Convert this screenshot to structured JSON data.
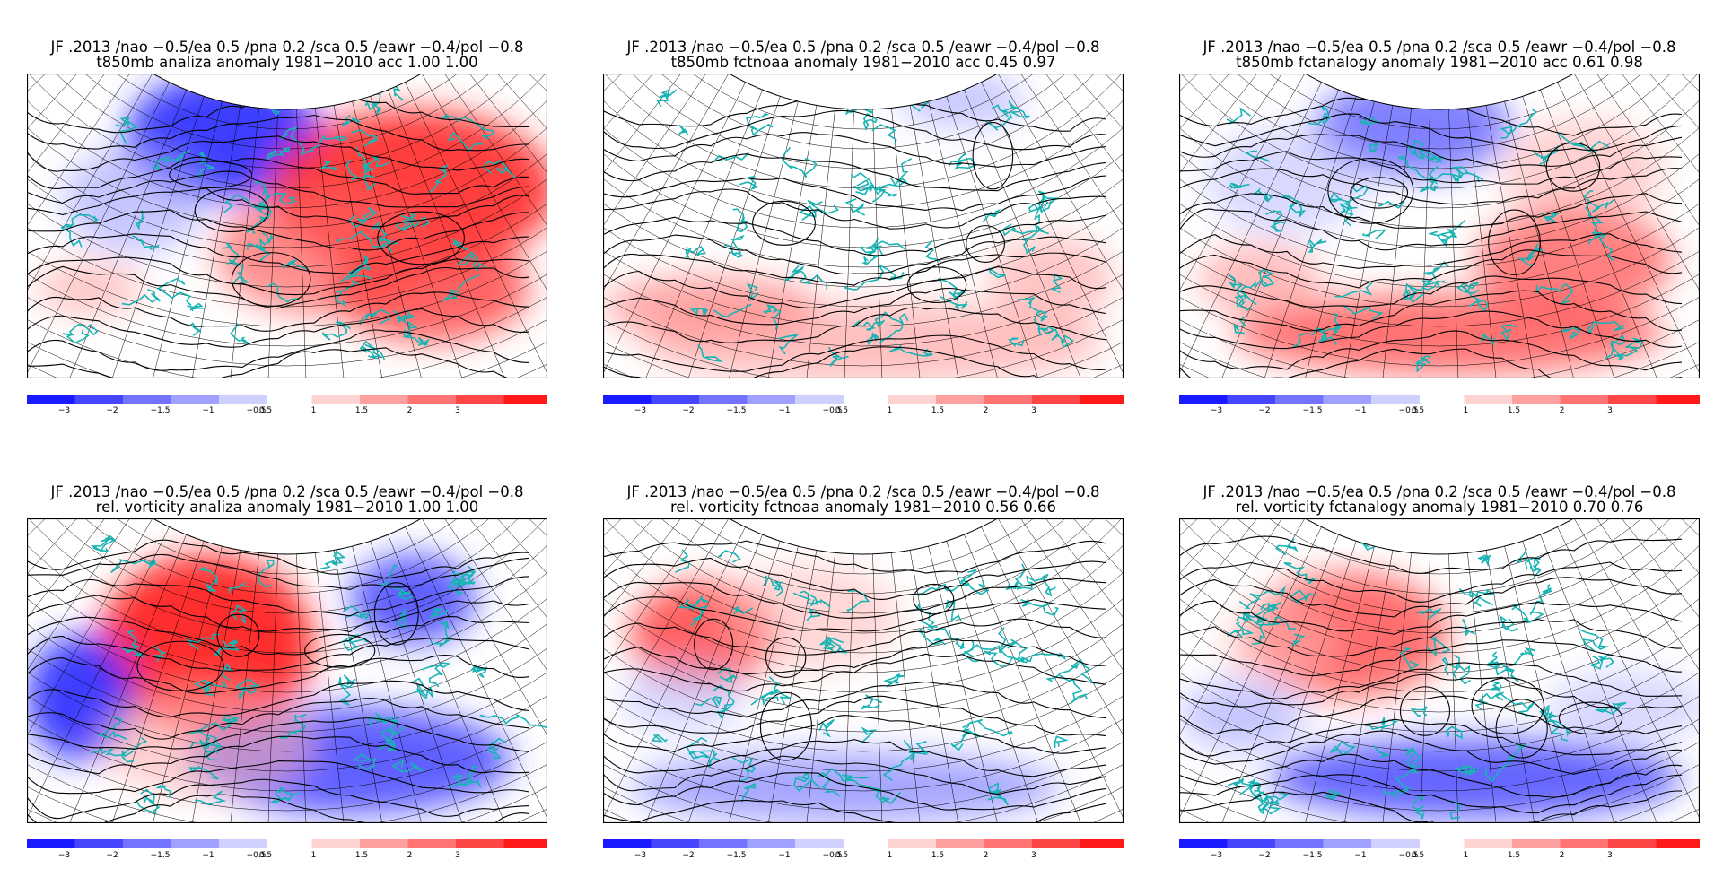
{
  "panels": [
    {
      "id": "t850-analiza",
      "title_line1": "JF .2013 /nao −0.5/ea 0.5 /pna 0.2 /sca 0.5 /eawr −0.4/pol −0.8",
      "title_line2": "t850mb analiza anomaly 1981−2010 acc  1.00  1.00"
    },
    {
      "id": "t850-fctnoaa",
      "title_line1": "JF .2013 /nao −0.5/ea 0.5 /pna 0.2 /sca 0.5 /eawr −0.4/pol −0.8",
      "title_line2": "t850mb fctnoaa anomaly 1981−2010 acc  0.45  0.97"
    },
    {
      "id": "t850-fctanalogy",
      "title_line1": "JF .2013 /nao −0.5/ea 0.5 /pna 0.2 /sca 0.5 /eawr −0.4/pol −0.8",
      "title_line2": "t850mb fctanalogy anomaly 1981−2010 acc  0.61  0.98"
    },
    {
      "id": "vort-analiza",
      "title_line1": "JF .2013    /nao −0.5/ea 0.5 /pna 0.2 /sca 0.5 /eawr −0.4/pol −0.8",
      "title_line2": "rel. vorticity analiza anomaly 1981−2010  1.00  1.00"
    },
    {
      "id": "vort-fctnoaa",
      "title_line1": "JF .2013    /nao −0.5/ea 0.5 /pna 0.2 /sca 0.5 /eawr −0.4/pol −0.8",
      "title_line2": "rel. vorticity fctnoaa anomaly 1981−2010  0.56  0.66"
    },
    {
      "id": "vort-fctanalogy",
      "title_line1": "JF .2013    /nao −0.5/ea 0.5 /pna 0.2 /sca 0.5 /eawr −0.4/pol −0.8",
      "title_line2": "rel. vorticity fctanalogy anomaly 1981−2010  0.70  0.76"
    }
  ],
  "colorbar": {
    "ticks": [
      "−3",
      "−2",
      "−1.5",
      "−1",
      "−0.5",
      "0.5",
      "1",
      "1.5",
      "2",
      "3"
    ],
    "colors_negative": [
      "#1a1aff",
      "#4646ff",
      "#7373ff",
      "#a0a0ff",
      "#d0d0ff"
    ],
    "colors_positive": [
      "#ffd2d2",
      "#ffa0a0",
      "#ff7373",
      "#ff4646",
      "#ff1a1a"
    ]
  },
  "map_features": {
    "coastline_color": "#18b4b4",
    "contour_color": "#000000",
    "grid_color": "#000000"
  }
}
